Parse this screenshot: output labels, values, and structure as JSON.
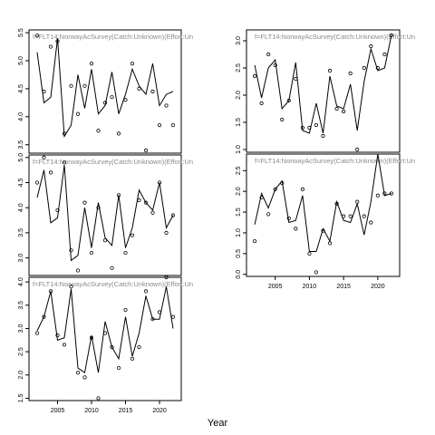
{
  "figure": {
    "xlabel": "Year"
  },
  "chart_data": [
    {
      "type": "line",
      "title": "f=FLT14:NorwayAcSurvey(Catch:Unknown)(Effort:Un",
      "xlim": [
        2000.8,
        2023.2
      ],
      "ylim": [
        3.35,
        5.55
      ],
      "yticks": [
        3.5,
        4.0,
        4.5,
        5.0,
        5.5
      ],
      "xticks": [],
      "series": [
        {
          "style": "line",
          "x": [
            2002,
            2003,
            2004,
            2005,
            2006,
            2007,
            2008,
            2009,
            2010,
            2011,
            2012,
            2013,
            2014,
            2015,
            2016,
            2017,
            2018,
            2019,
            2020,
            2021,
            2022
          ],
          "values": [
            5.15,
            4.25,
            4.35,
            5.4,
            3.65,
            3.85,
            4.75,
            4.15,
            4.85,
            4.05,
            4.2,
            4.8,
            4.05,
            4.4,
            4.85,
            4.55,
            4.4,
            4.95,
            4.2,
            4.4,
            4.45
          ]
        },
        {
          "style": "points",
          "x": [
            2002,
            2003,
            2004,
            2005,
            2006,
            2007,
            2008,
            2009,
            2010,
            2011,
            2012,
            2013,
            2014,
            2015,
            2016,
            2017,
            2018,
            2019,
            2020,
            2021,
            2022
          ],
          "values": [
            5.45,
            4.45,
            5.25,
            5.35,
            3.7,
            4.55,
            4.05,
            4.55,
            4.95,
            3.75,
            4.25,
            4.35,
            3.7,
            4.3,
            4.95,
            4.5,
            3.4,
            4.45,
            3.85,
            4.2,
            3.85
          ]
        }
      ]
    },
    {
      "type": "line",
      "title": "f=FLT14:NorwayAcSurvey(Catch:Unknown)(Effort:Un",
      "xlim": [
        2000.8,
        2023.2
      ],
      "ylim": [
        0.95,
        3.2
      ],
      "yticks": [
        1.0,
        1.5,
        2.0,
        2.5,
        3.0
      ],
      "xticks": [],
      "series": [
        {
          "style": "line",
          "x": [
            2002,
            2003,
            2004,
            2005,
            2006,
            2007,
            2008,
            2009,
            2010,
            2011,
            2012,
            2013,
            2014,
            2015,
            2016,
            2017,
            2018,
            2019,
            2020,
            2021,
            2022
          ],
          "values": [
            2.55,
            1.95,
            2.5,
            2.65,
            1.75,
            1.9,
            2.6,
            1.35,
            1.3,
            1.85,
            1.3,
            2.35,
            1.8,
            1.75,
            2.2,
            1.35,
            2.25,
            2.85,
            2.45,
            2.5,
            3.1
          ]
        },
        {
          "style": "points",
          "x": [
            2002,
            2003,
            2004,
            2005,
            2006,
            2007,
            2008,
            2009,
            2010,
            2011,
            2012,
            2013,
            2014,
            2015,
            2016,
            2017,
            2018,
            2019,
            2020,
            2021,
            2022
          ],
          "values": [
            2.35,
            1.85,
            2.75,
            2.55,
            1.55,
            1.9,
            2.3,
            1.4,
            1.4,
            1.45,
            1.25,
            2.45,
            1.75,
            1.7,
            2.4,
            1.0,
            2.5,
            2.9,
            2.5,
            2.75,
            3.1
          ]
        }
      ]
    },
    {
      "type": "line",
      "title": "f=FLT14:NorwayAcSurvey(Catch:Unknown)(Effort:Un",
      "xlim": [
        2000.8,
        2023.2
      ],
      "ylim": [
        2.65,
        5.05
      ],
      "yticks": [
        3.0,
        3.5,
        4.0,
        4.5,
        5.0
      ],
      "xticks": [],
      "series": [
        {
          "style": "line",
          "x": [
            2002,
            2003,
            2004,
            2005,
            2006,
            2007,
            2008,
            2009,
            2010,
            2011,
            2012,
            2013,
            2014,
            2015,
            2016,
            2017,
            2018,
            2019,
            2020,
            2021,
            2022
          ],
          "values": [
            4.2,
            4.75,
            3.7,
            3.8,
            4.85,
            2.95,
            3.05,
            4.0,
            3.2,
            4.1,
            3.4,
            3.25,
            4.25,
            3.2,
            3.6,
            4.35,
            4.1,
            3.95,
            4.5,
            3.6,
            3.85
          ]
        },
        {
          "style": "points",
          "x": [
            2002,
            2003,
            2004,
            2005,
            2006,
            2007,
            2008,
            2009,
            2010,
            2011,
            2012,
            2013,
            2014,
            2015,
            2016,
            2017,
            2018,
            2019,
            2020,
            2021,
            2022
          ],
          "values": [
            4.5,
            5.0,
            4.7,
            3.95,
            4.9,
            3.15,
            2.75,
            4.1,
            3.1,
            4.0,
            3.35,
            2.8,
            4.25,
            3.1,
            3.45,
            4.15,
            4.1,
            3.9,
            4.5,
            3.5,
            3.85
          ]
        }
      ]
    },
    {
      "type": "line",
      "title": "f=FLT14:NorwayAcSurvey(Catch:Unknown)(Effort:Un",
      "xlim": [
        2000.8,
        2023.2
      ],
      "ylim": [
        -0.05,
        2.9
      ],
      "yticks": [
        0.0,
        0.5,
        1.0,
        1.5,
        2.0,
        2.5
      ],
      "xticks": [
        2005,
        2010,
        2015,
        2020
      ],
      "series": [
        {
          "style": "line",
          "x": [
            2002,
            2003,
            2004,
            2005,
            2006,
            2007,
            2008,
            2009,
            2010,
            2011,
            2012,
            2013,
            2014,
            2015,
            2016,
            2017,
            2018,
            2019,
            2020,
            2021,
            2022
          ],
          "values": [
            1.2,
            1.95,
            1.6,
            2.05,
            2.25,
            1.25,
            1.3,
            1.9,
            0.55,
            0.55,
            1.1,
            0.8,
            1.75,
            1.3,
            1.25,
            1.7,
            0.95,
            1.75,
            2.9,
            1.9,
            1.95
          ]
        },
        {
          "style": "points",
          "x": [
            2002,
            2003,
            2004,
            2005,
            2006,
            2007,
            2008,
            2009,
            2010,
            2011,
            2012,
            2013,
            2014,
            2015,
            2016,
            2017,
            2018,
            2019,
            2020,
            2021,
            2022
          ],
          "values": [
            0.8,
            1.85,
            1.45,
            2.05,
            2.2,
            1.35,
            1.1,
            2.05,
            0.5,
            0.05,
            1.05,
            0.75,
            1.7,
            1.4,
            1.4,
            1.75,
            1.4,
            1.25,
            1.9,
            1.95,
            1.95
          ]
        }
      ]
    },
    {
      "type": "line",
      "title": "f=FLT14:NorwayAcSurvey(Catch:Unknown)(Effort:Un",
      "xlim": [
        2000.8,
        2023.2
      ],
      "ylim": [
        1.45,
        4.1
      ],
      "yticks": [
        1.5,
        2.0,
        2.5,
        3.0,
        3.5,
        4.0
      ],
      "xticks": [
        2005,
        2010,
        2015,
        2020
      ],
      "series": [
        {
          "style": "line",
          "x": [
            2002,
            2003,
            2004,
            2005,
            2006,
            2007,
            2008,
            2009,
            2010,
            2011,
            2012,
            2013,
            2014,
            2015,
            2016,
            2017,
            2018,
            2019,
            2020,
            2021,
            2022
          ],
          "values": [
            2.95,
            3.25,
            3.8,
            2.75,
            2.8,
            3.85,
            2.15,
            2.05,
            2.85,
            2.05,
            3.15,
            2.6,
            2.35,
            3.25,
            2.4,
            2.9,
            3.7,
            3.2,
            3.2,
            3.9,
            3.0
          ]
        },
        {
          "style": "points",
          "x": [
            2002,
            2003,
            2004,
            2005,
            2006,
            2007,
            2008,
            2009,
            2010,
            2011,
            2012,
            2013,
            2014,
            2015,
            2016,
            2017,
            2018,
            2019,
            2020,
            2021,
            2022
          ],
          "values": [
            2.9,
            3.25,
            3.8,
            2.85,
            2.65,
            3.9,
            2.05,
            1.95,
            2.8,
            1.5,
            2.9,
            2.6,
            2.15,
            3.4,
            2.35,
            2.6,
            3.8,
            3.2,
            3.35,
            4.1,
            3.25
          ]
        }
      ]
    }
  ]
}
